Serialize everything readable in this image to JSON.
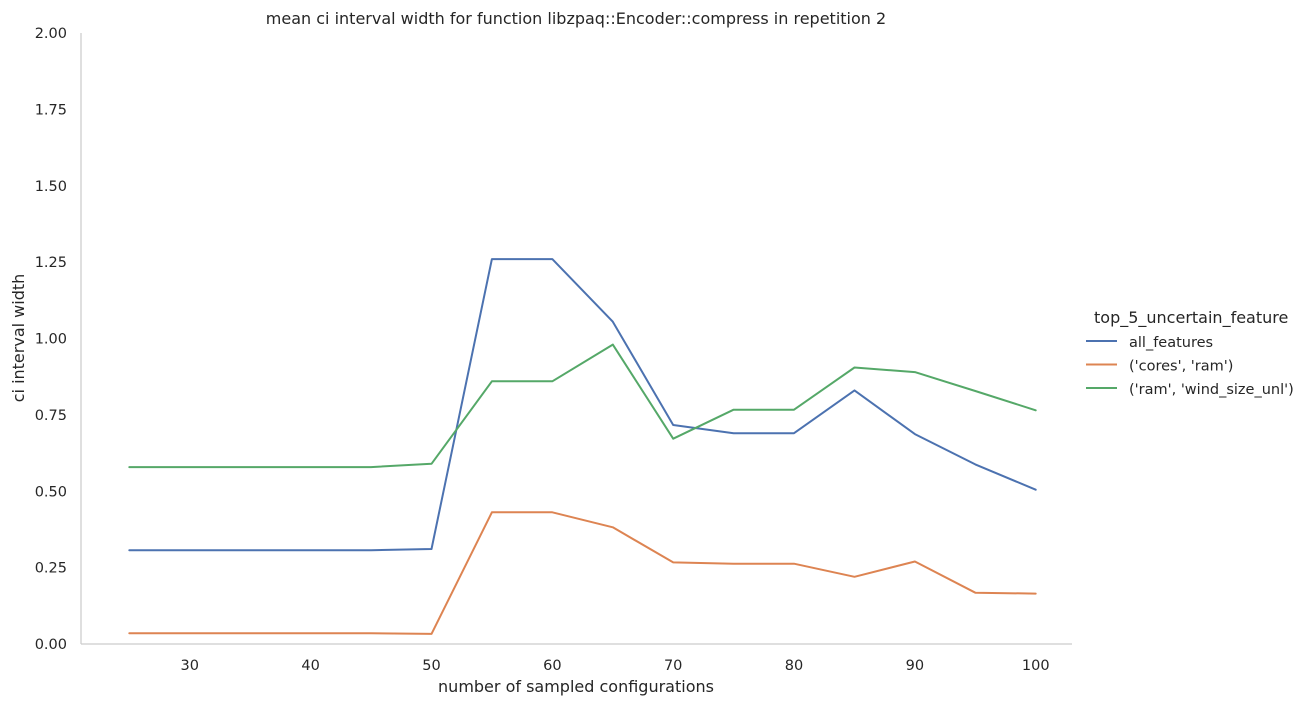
{
  "chart_data": {
    "type": "line",
    "title": "mean ci interval width for function libzpaq::Encoder::compress in repetition 2",
    "xlabel": "number of sampled configurations",
    "ylabel": "ci interval width",
    "xlim": [
      21,
      103
    ],
    "ylim": [
      0,
      2
    ],
    "xticks": [
      30,
      40,
      50,
      60,
      70,
      80,
      90,
      100
    ],
    "yticks": [
      0,
      0.25,
      0.5,
      0.75,
      1.0,
      1.25,
      1.5,
      1.75,
      2.0
    ],
    "ytick_labels": [
      "0.00",
      "0.25",
      "0.50",
      "0.75",
      "1.00",
      "1.25",
      "1.50",
      "1.75",
      "2.00"
    ],
    "grid": false,
    "legend": {
      "title": "top_5_uncertain_feature",
      "placement": "right"
    },
    "x": [
      25,
      30,
      35,
      40,
      45,
      50,
      55,
      60,
      65,
      70,
      75,
      80,
      85,
      90,
      95,
      100
    ],
    "series": [
      {
        "name": "all_features",
        "color": "#4c72b0",
        "values": [
          0.307,
          0.307,
          0.307,
          0.307,
          0.307,
          0.311,
          1.26,
          1.26,
          1.055,
          0.717,
          0.69,
          0.69,
          0.83,
          0.687,
          0.588,
          0.505
        ]
      },
      {
        "name": "('cores', 'ram')",
        "color": "#dd8452",
        "values": [
          0.035,
          0.035,
          0.035,
          0.035,
          0.035,
          0.033,
          0.431,
          0.431,
          0.382,
          0.267,
          0.263,
          0.263,
          0.22,
          0.27,
          0.168,
          0.165
        ]
      },
      {
        "name": "('ram', 'wind_size_unl')",
        "color": "#55a868",
        "values": [
          0.579,
          0.579,
          0.579,
          0.579,
          0.579,
          0.59,
          0.86,
          0.86,
          0.98,
          0.672,
          0.767,
          0.767,
          0.905,
          0.89,
          0.828,
          0.765
        ]
      }
    ]
  }
}
